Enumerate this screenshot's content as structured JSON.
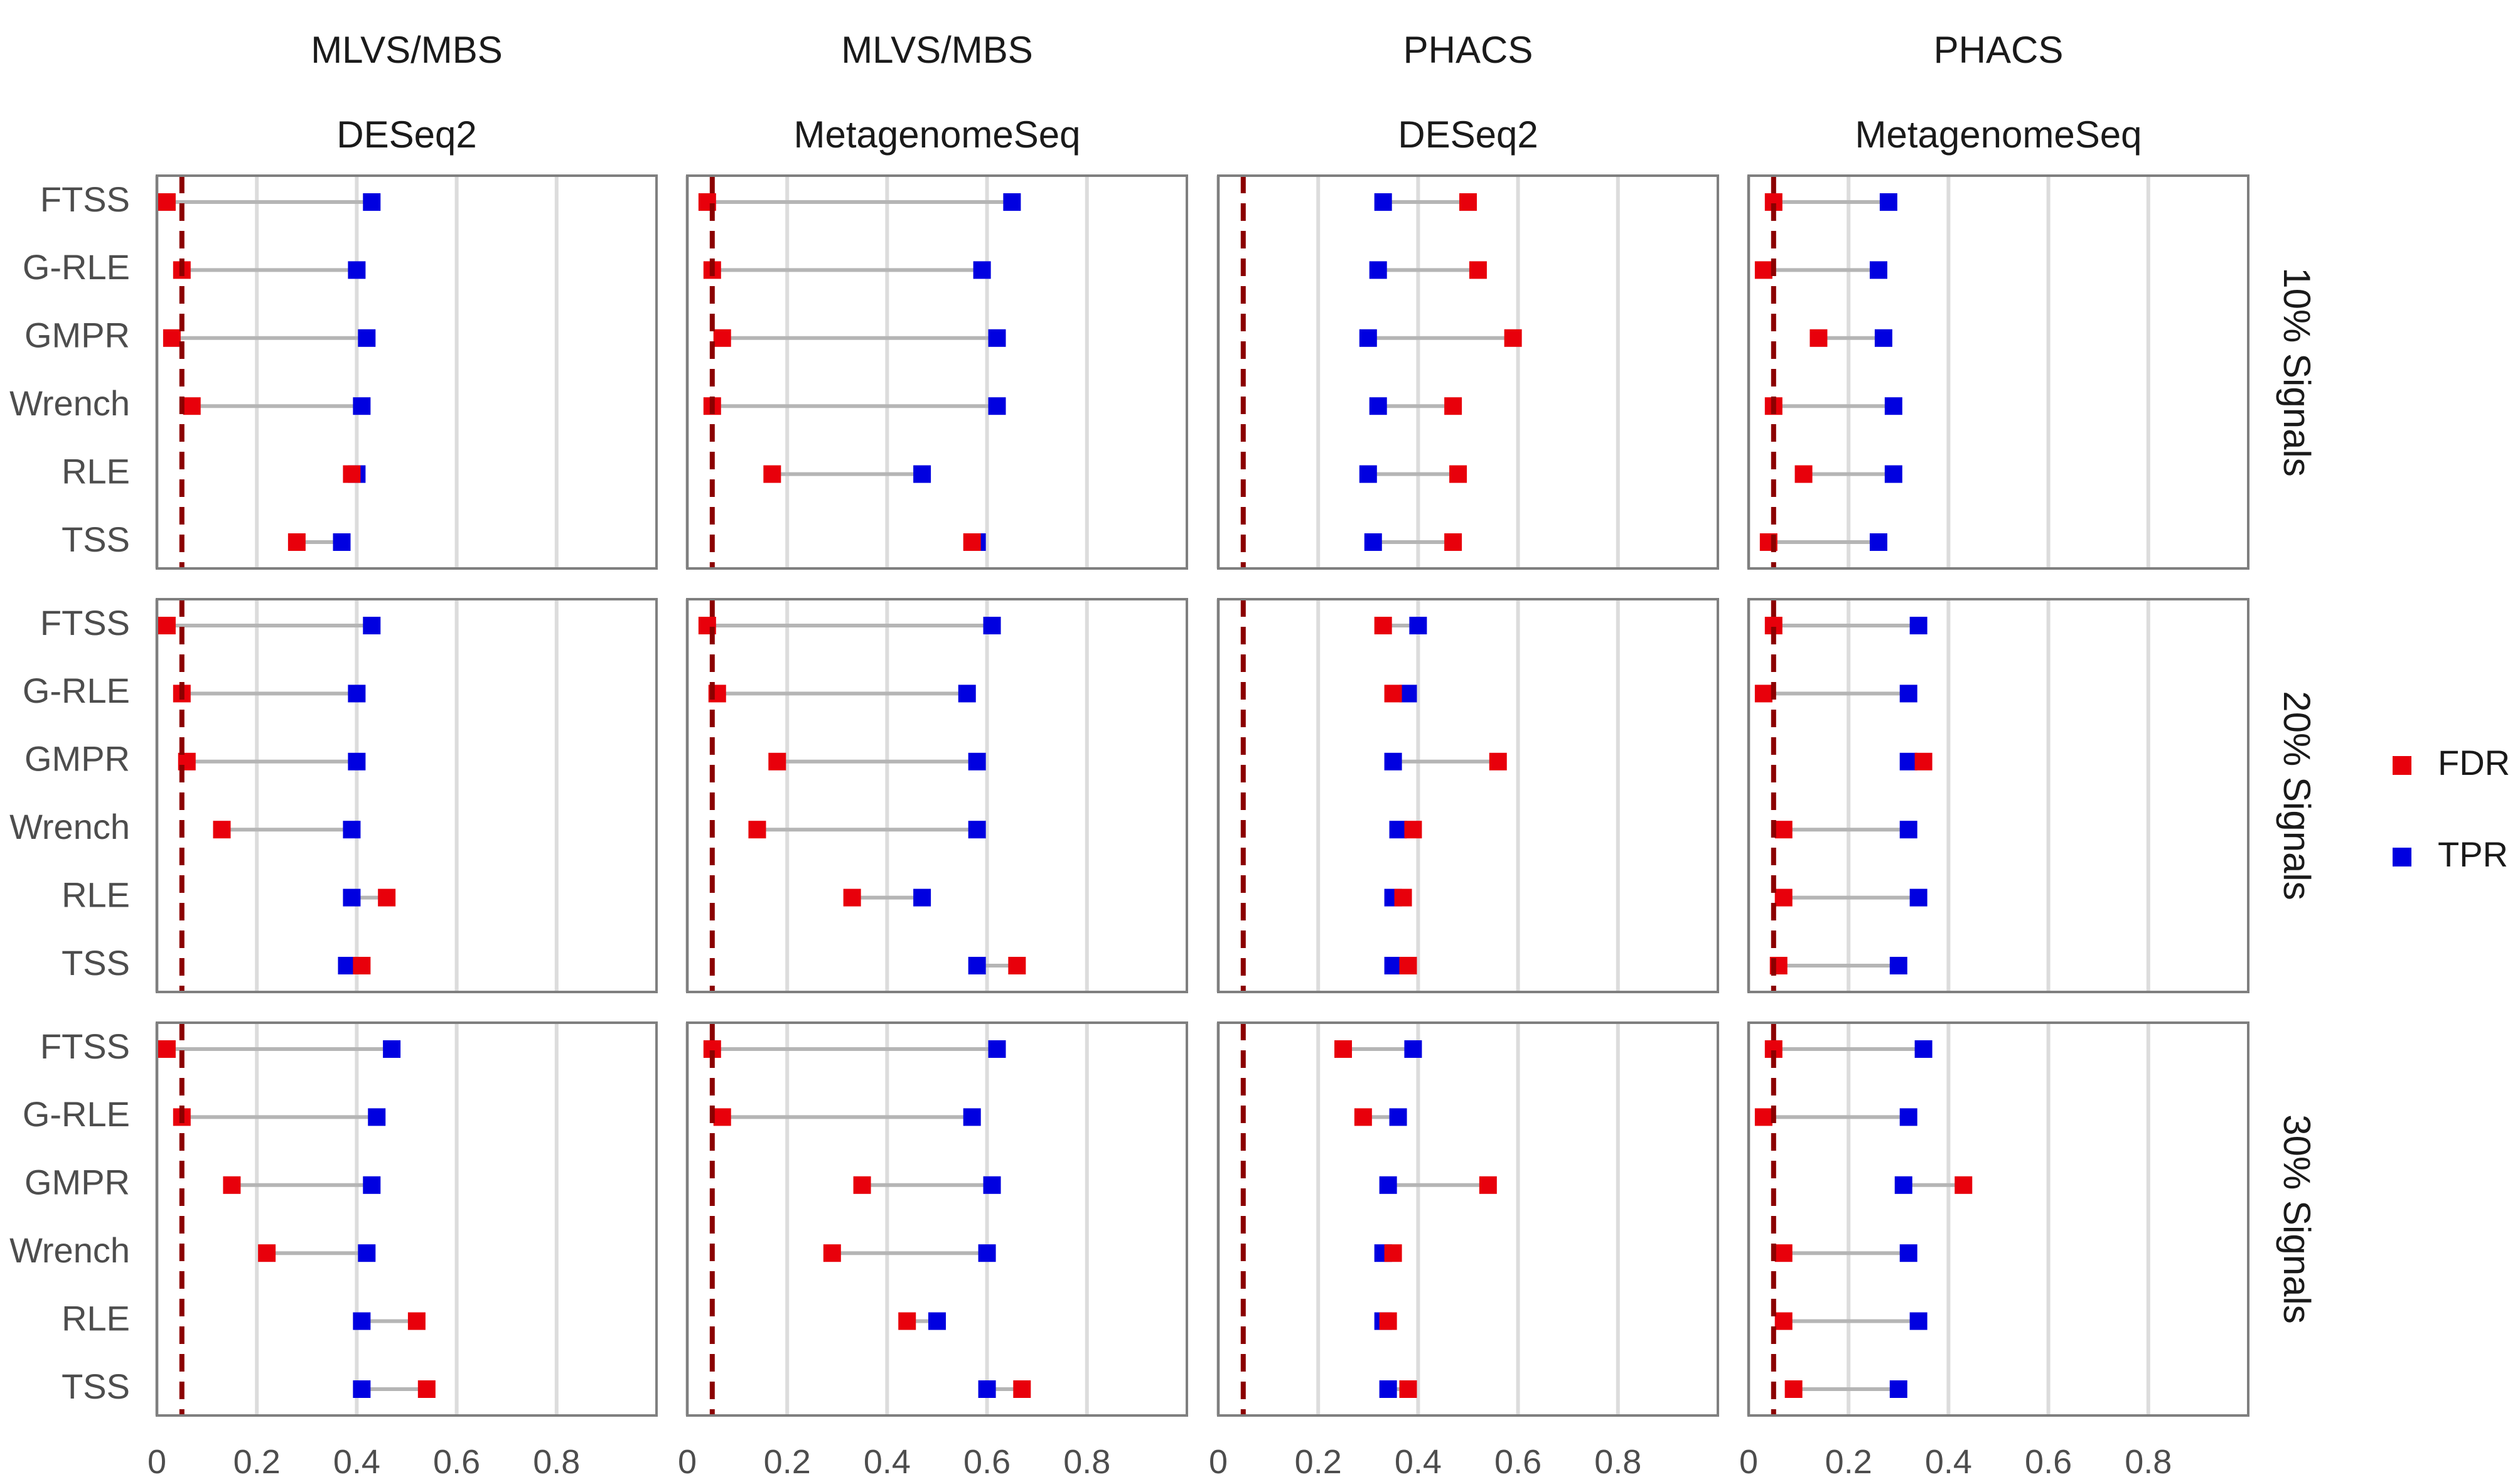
{
  "colors": {
    "fdr": "#e8000b",
    "tpr": "#0000e0",
    "connector": "#b5b5b5",
    "threshold": "#8b0000",
    "grid": "#dcdcdc",
    "panel_border": "#7f7f7f",
    "text": "#4d4d4d",
    "title_text": "#1a1a1a"
  },
  "chart_data": {
    "type": "dumbbell",
    "column_headers": [
      {
        "dataset": "MLVS/MBS",
        "method": "DESeq2"
      },
      {
        "dataset": "MLVS/MBS",
        "method": "MetagenomeSeq"
      },
      {
        "dataset": "PHACS",
        "method": "DESeq2"
      },
      {
        "dataset": "PHACS",
        "method": "MetagenomeSeq"
      }
    ],
    "row_headers": [
      "10% Signals",
      "20% Signals",
      "30% Signals"
    ],
    "categories": [
      "FTSS",
      "G-RLE",
      "GMPR",
      "Wrench",
      "RLE",
      "TSS"
    ],
    "x_ticks": [
      0,
      0.2,
      0.4,
      0.6,
      0.8
    ],
    "x_tick_labels": [
      "0",
      "0.2",
      "0.4",
      "0.6",
      "0.8"
    ],
    "xlim": [
      0,
      1
    ],
    "threshold": 0.05,
    "legend": [
      {
        "key": "fdr",
        "label": "FDR"
      },
      {
        "key": "tpr",
        "label": "TPR"
      }
    ],
    "panels": [
      {
        "row": 0,
        "col": 0,
        "fdr": [
          0.02,
          0.05,
          0.03,
          0.07,
          0.39,
          0.28
        ],
        "tpr": [
          0.43,
          0.4,
          0.42,
          0.41,
          0.4,
          0.37
        ]
      },
      {
        "row": 0,
        "col": 1,
        "fdr": [
          0.04,
          0.05,
          0.07,
          0.05,
          0.17,
          0.57
        ],
        "tpr": [
          0.65,
          0.59,
          0.62,
          0.62,
          0.47,
          0.58
        ]
      },
      {
        "row": 0,
        "col": 2,
        "fdr": [
          0.5,
          0.52,
          0.59,
          0.47,
          0.48,
          0.47
        ],
        "tpr": [
          0.33,
          0.32,
          0.3,
          0.32,
          0.3,
          0.31
        ]
      },
      {
        "row": 0,
        "col": 3,
        "fdr": [
          0.05,
          0.03,
          0.14,
          0.05,
          0.11,
          0.04
        ],
        "tpr": [
          0.28,
          0.26,
          0.27,
          0.29,
          0.29,
          0.26
        ]
      },
      {
        "row": 1,
        "col": 0,
        "fdr": [
          0.02,
          0.05,
          0.06,
          0.13,
          0.46,
          0.41
        ],
        "tpr": [
          0.43,
          0.4,
          0.4,
          0.39,
          0.39,
          0.38
        ]
      },
      {
        "row": 1,
        "col": 1,
        "fdr": [
          0.04,
          0.06,
          0.18,
          0.14,
          0.33,
          0.66
        ],
        "tpr": [
          0.61,
          0.56,
          0.58,
          0.58,
          0.47,
          0.58
        ]
      },
      {
        "row": 1,
        "col": 2,
        "fdr": [
          0.33,
          0.35,
          0.56,
          0.39,
          0.37,
          0.38
        ],
        "tpr": [
          0.4,
          0.38,
          0.35,
          0.36,
          0.35,
          0.35
        ]
      },
      {
        "row": 1,
        "col": 3,
        "fdr": [
          0.05,
          0.03,
          0.35,
          0.07,
          0.07,
          0.06
        ],
        "tpr": [
          0.34,
          0.32,
          0.32,
          0.32,
          0.34,
          0.3
        ]
      },
      {
        "row": 2,
        "col": 0,
        "fdr": [
          0.02,
          0.05,
          0.15,
          0.22,
          0.52,
          0.54
        ],
        "tpr": [
          0.47,
          0.44,
          0.43,
          0.42,
          0.41,
          0.41
        ]
      },
      {
        "row": 2,
        "col": 1,
        "fdr": [
          0.05,
          0.07,
          0.35,
          0.29,
          0.44,
          0.67
        ],
        "tpr": [
          0.62,
          0.57,
          0.61,
          0.6,
          0.5,
          0.6
        ]
      },
      {
        "row": 2,
        "col": 2,
        "fdr": [
          0.25,
          0.29,
          0.54,
          0.35,
          0.34,
          0.38
        ],
        "tpr": [
          0.39,
          0.36,
          0.34,
          0.33,
          0.33,
          0.34
        ]
      },
      {
        "row": 2,
        "col": 3,
        "fdr": [
          0.05,
          0.03,
          0.43,
          0.07,
          0.07,
          0.09
        ],
        "tpr": [
          0.35,
          0.32,
          0.31,
          0.32,
          0.34,
          0.3
        ]
      }
    ]
  }
}
